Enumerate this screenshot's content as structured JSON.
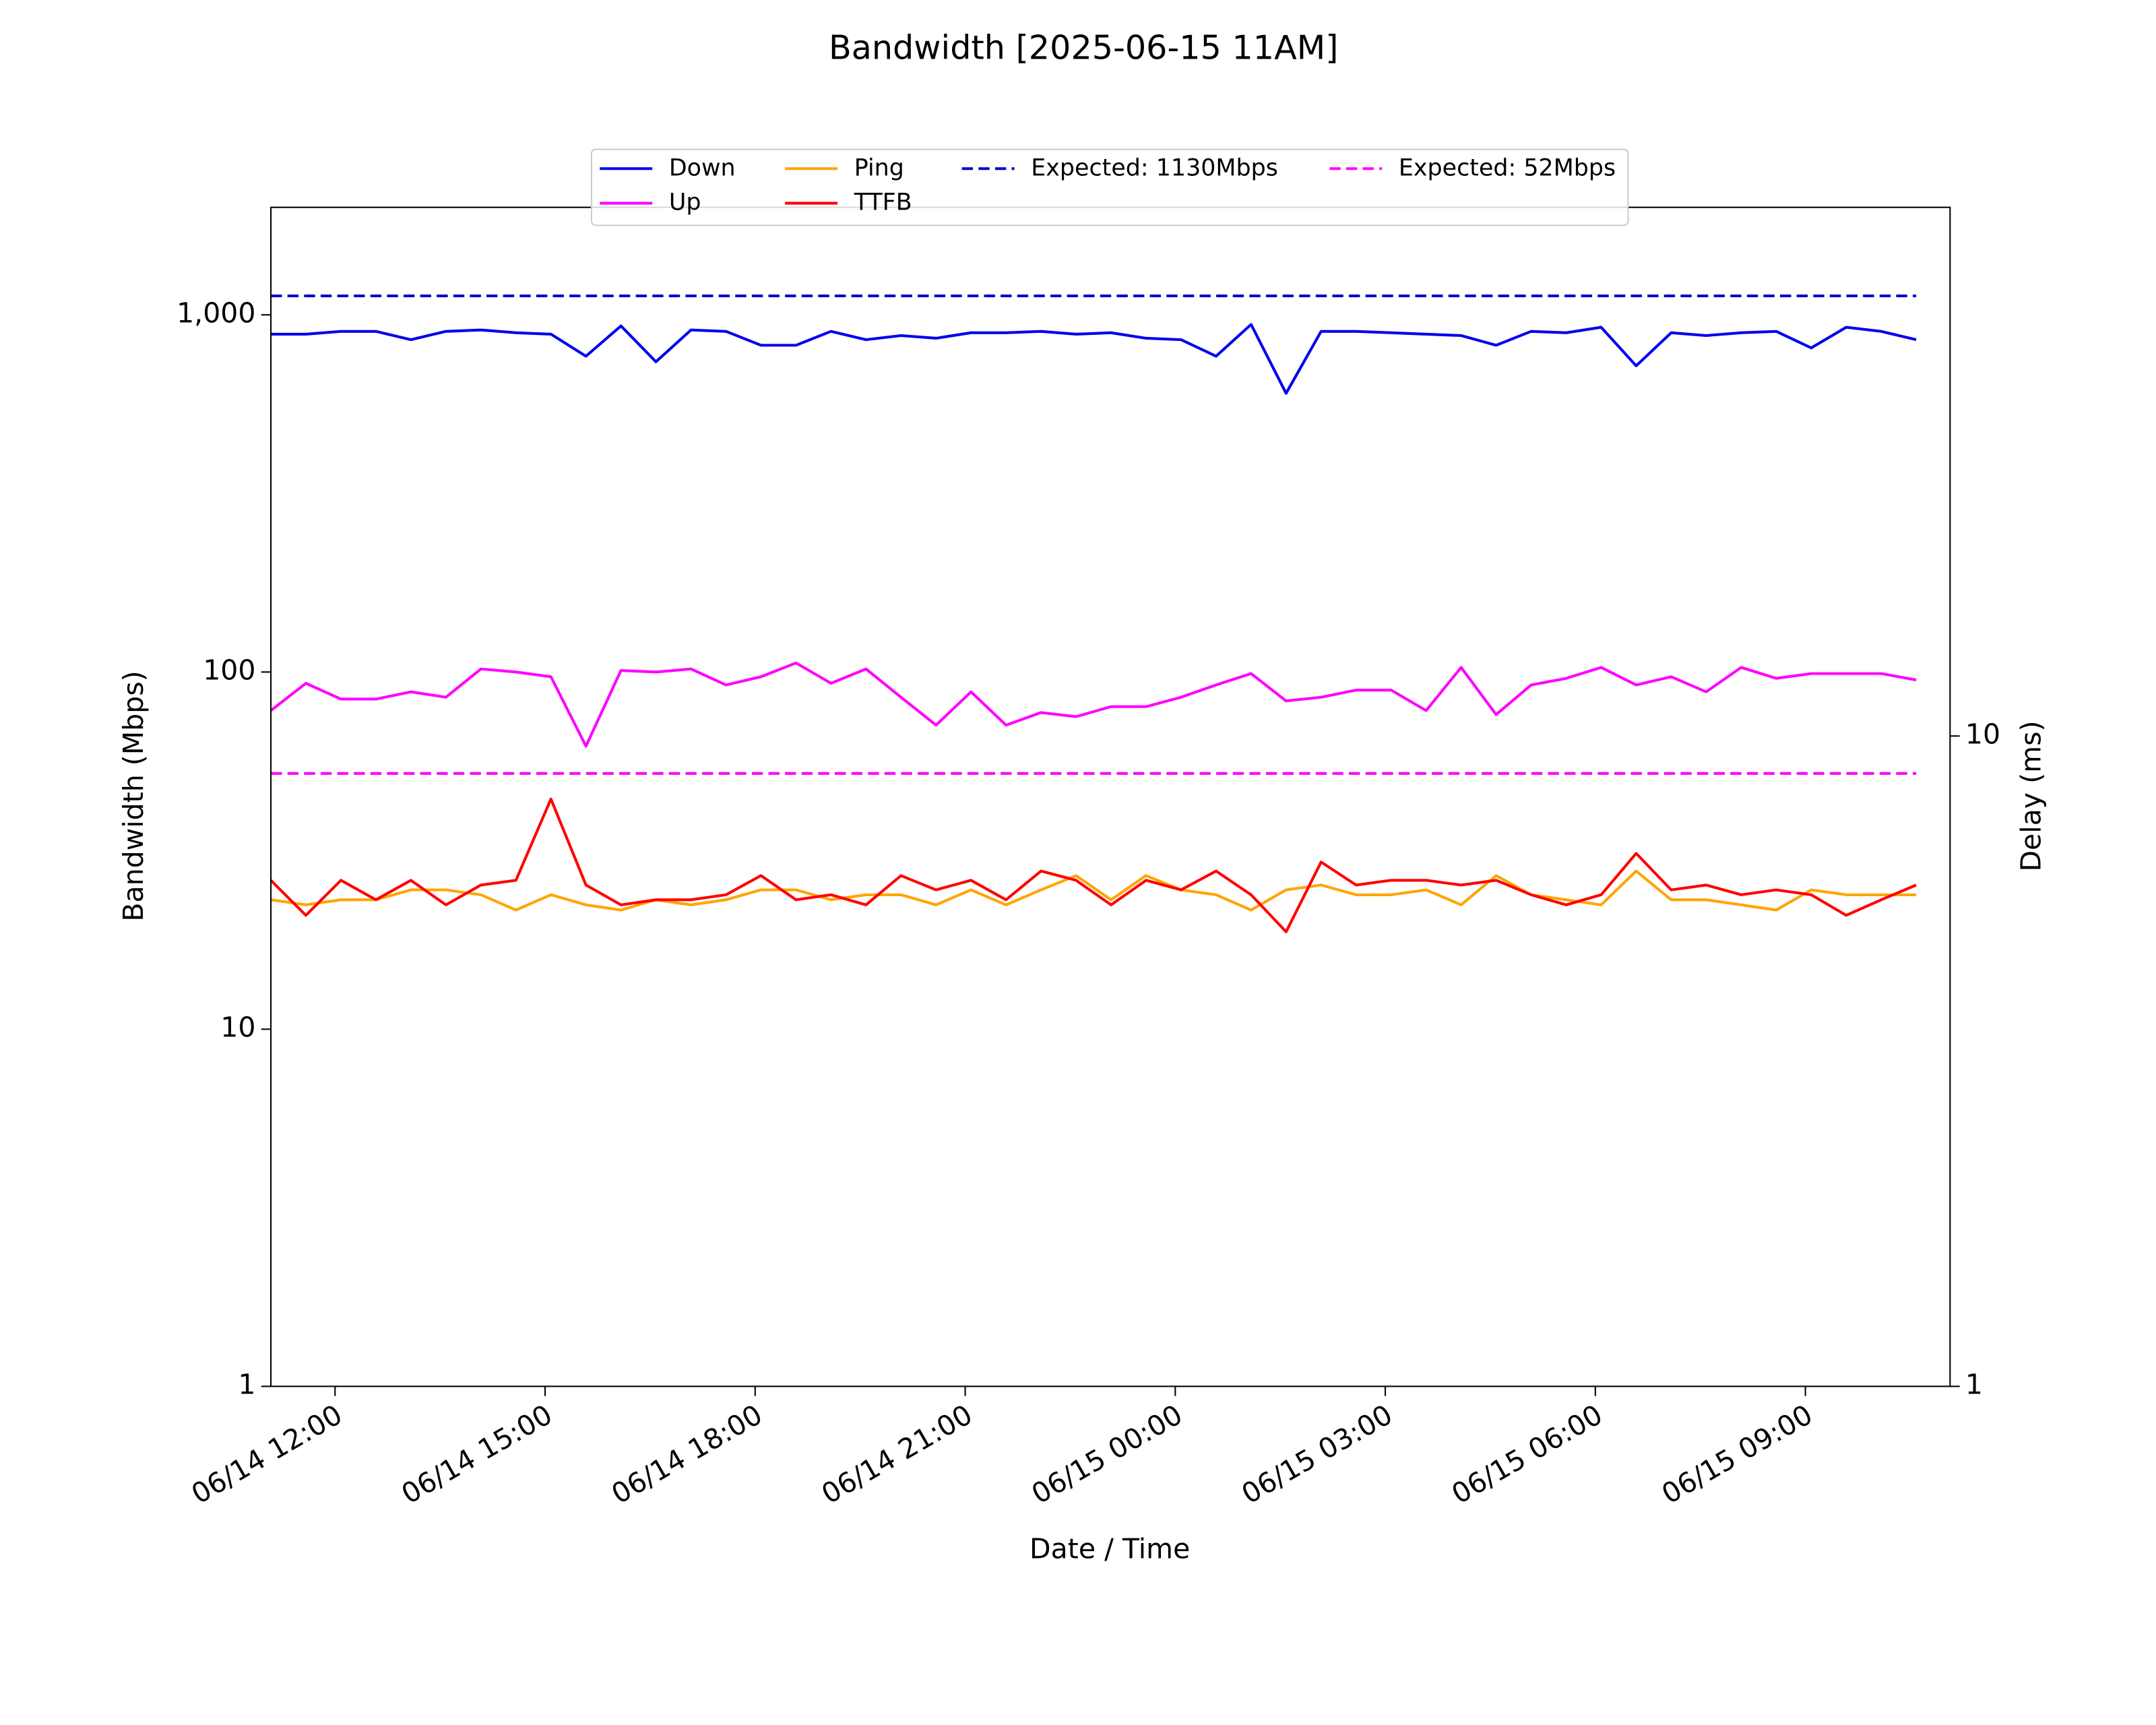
{
  "chart_data": {
    "type": "line",
    "title": "Bandwidth [2025-06-15 11AM]",
    "xlabel": "Date / Time",
    "ylabel": "Bandwidth (Mbps)",
    "y2label": "Delay (ms)",
    "x": [
      "06/14 11:05",
      "06/14 11:35",
      "06/14 12:05",
      "06/14 12:35",
      "06/14 13:05",
      "06/14 13:35",
      "06/14 14:05",
      "06/14 14:35",
      "06/14 15:05",
      "06/14 15:35",
      "06/14 16:05",
      "06/14 16:35",
      "06/14 17:05",
      "06/14 17:35",
      "06/14 18:05",
      "06/14 18:35",
      "06/14 19:05",
      "06/14 19:35",
      "06/14 20:05",
      "06/14 20:35",
      "06/14 21:05",
      "06/14 21:35",
      "06/14 22:05",
      "06/14 22:35",
      "06/14 23:05",
      "06/14 23:35",
      "06/15 00:05",
      "06/15 00:35",
      "06/15 01:05",
      "06/15 01:35",
      "06/15 02:05",
      "06/15 02:35",
      "06/15 03:05",
      "06/15 03:35",
      "06/15 04:05",
      "06/15 04:35",
      "06/15 05:05",
      "06/15 05:35",
      "06/15 06:05",
      "06/15 06:35",
      "06/15 07:05",
      "06/15 07:35",
      "06/15 08:05",
      "06/15 08:35",
      "06/15 09:05",
      "06/15 09:35",
      "06/15 10:05",
      "06/15 10:35"
    ],
    "series": [
      {
        "name": "Down",
        "color": "#0000ee",
        "axis": "y",
        "values": [
          883,
          883,
          899,
          899,
          852,
          899,
          907,
          891,
          883,
          766,
          931,
          739,
          907,
          899,
          822,
          822,
          899,
          852,
          875,
          860,
          891,
          891,
          899,
          883,
          891,
          860,
          852,
          766,
          940,
          603,
          899,
          899,
          891,
          883,
          875,
          822,
          899,
          891,
          923,
          720,
          891,
          875,
          891,
          899,
          808,
          923,
          899,
          852
        ]
      },
      {
        "name": "Up",
        "color": "#ff00ff",
        "axis": "y",
        "values": [
          78,
          93,
          84,
          84,
          88,
          85,
          102,
          100,
          97,
          62,
          101,
          100,
          102,
          92,
          97,
          106,
          93,
          102,
          85,
          71,
          88,
          71,
          77,
          75,
          80,
          80,
          85,
          92,
          99,
          83,
          85,
          89,
          89,
          78,
          103,
          76,
          92,
          96,
          103,
          92,
          97,
          88,
          103,
          96,
          99,
          99,
          99,
          95
        ]
      },
      {
        "name": "Ping",
        "color": "#ffa500",
        "axis": "y2",
        "values": [
          5.6,
          5.5,
          5.6,
          5.6,
          5.8,
          5.8,
          5.7,
          5.4,
          5.7,
          5.5,
          5.4,
          5.6,
          5.5,
          5.6,
          5.8,
          5.8,
          5.6,
          5.7,
          5.7,
          5.5,
          5.8,
          5.5,
          5.8,
          6.1,
          5.6,
          6.1,
          5.8,
          5.7,
          5.4,
          5.8,
          5.9,
          5.7,
          5.7,
          5.8,
          5.5,
          6.1,
          5.7,
          5.6,
          5.5,
          6.2,
          5.6,
          5.6,
          5.5,
          5.4,
          5.8,
          5.7,
          5.7,
          5.7
        ]
      },
      {
        "name": "TTFB",
        "color": "#ff0000",
        "axis": "y2",
        "values": [
          6.0,
          5.3,
          6.0,
          5.6,
          6.0,
          5.5,
          5.9,
          6.0,
          8.0,
          5.9,
          5.5,
          5.6,
          5.6,
          5.7,
          6.1,
          5.6,
          5.7,
          5.5,
          6.1,
          5.8,
          6.0,
          5.6,
          6.2,
          6.0,
          5.5,
          6.0,
          5.8,
          6.2,
          5.7,
          5.0,
          6.4,
          5.9,
          6.0,
          6.0,
          5.9,
          6.0,
          5.7,
          5.5,
          5.7,
          6.6,
          5.8,
          5.9,
          5.7,
          5.8,
          5.7,
          5.3,
          5.6,
          5.9
        ]
      }
    ],
    "hlines": [
      {
        "name": "Expected: 1130Mbps",
        "value": 1130,
        "color": "#0000cd",
        "axis": "y"
      },
      {
        "name": "Expected: 52Mbps",
        "value": 52,
        "color": "#ff00ff",
        "axis": "y"
      }
    ],
    "xlim": [
      "06/14 11:05",
      "06/15 11:04"
    ],
    "xticks": [
      "06/14 12:00",
      "06/14 15:00",
      "06/14 18:00",
      "06/14 21:00",
      "06/15 00:00",
      "06/15 03:00",
      "06/15 06:00",
      "06/15 09:00"
    ],
    "yscale": "log",
    "ylim": [
      1,
      2000
    ],
    "yticks": [
      1,
      10,
      100,
      {
        "value": 1000,
        "label": "1,000"
      }
    ],
    "y2scale": "log",
    "y2lim": [
      1,
      65
    ],
    "y2ticks": [
      1,
      10
    ],
    "legend": "upper center",
    "grid": false
  }
}
